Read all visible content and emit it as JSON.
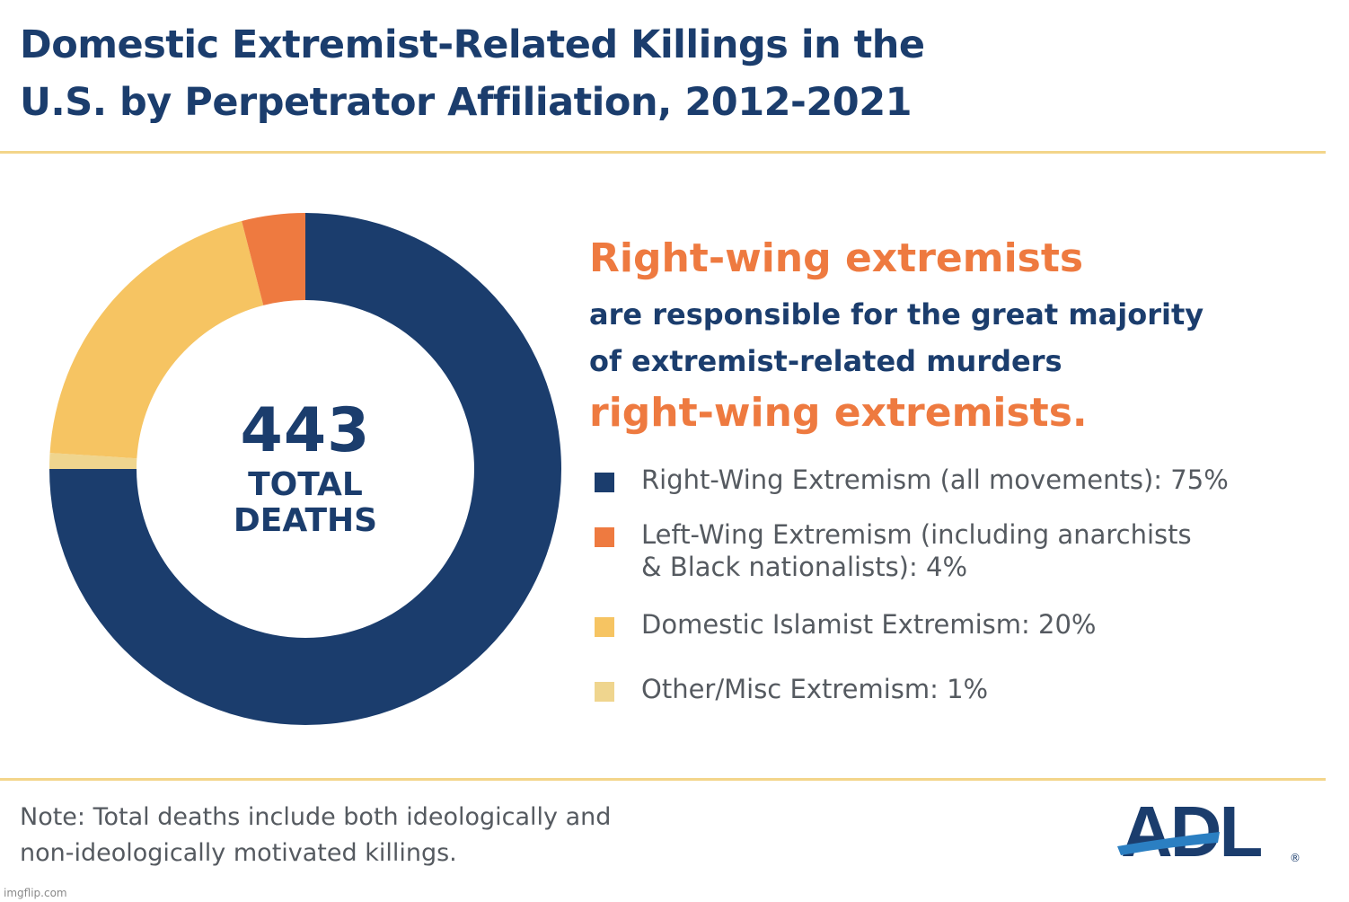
{
  "header": {
    "title_line1": "Domestic Extremist-Related Killings in the",
    "title_line2": "U.S. by Perpetrator Affiliation, 2012-2021"
  },
  "headline": {
    "line1": "Right-wing extremists",
    "line2": "are responsible for the great majority",
    "line3": "of extremist-related murders",
    "line4": "right-wing extremists."
  },
  "center": {
    "number": "443",
    "label_line1": "TOTAL",
    "label_line2": "DEATHS"
  },
  "legend": [
    {
      "line1": "Right-Wing Extremism (all movements):  75%",
      "line2": ""
    },
    {
      "line1": "Left-Wing Extremism (including anarchists",
      "line2": "& Black nationalists):  4%"
    },
    {
      "line1": "Domestic Islamist Extremism: 20%",
      "line2": ""
    },
    {
      "line1": "Other/Misc Extremism: 1%",
      "line2": ""
    }
  ],
  "note": {
    "line1": "Note: Total deaths include both ideologically and",
    "line2": "non-ideologically motivated killings."
  },
  "logo": {
    "text": "ADL",
    "reg": "®"
  },
  "watermark": "imgflip.com",
  "colors": {
    "navy": "#1b3d6d",
    "orange": "#ee7a40",
    "gold": "#f6c462",
    "tan": "#efd58e",
    "rule": "#f3d58a",
    "gray_text": "#555a60"
  },
  "chart_data": {
    "type": "pie",
    "title": "Domestic Extremist-Related Killings in the U.S. by Perpetrator Affiliation, 2012-2021",
    "total": 443,
    "center_label": "443 TOTAL DEATHS",
    "slices": [
      {
        "name": "Right-Wing Extremism (all movements)",
        "value": 75,
        "color": "#1b3d6d"
      },
      {
        "name": "Left-Wing Extremism (including anarchists & Black nationalists)",
        "value": 4,
        "color": "#ee7a40"
      },
      {
        "name": "Domestic Islamist Extremism",
        "value": 20,
        "color": "#f6c462"
      },
      {
        "name": "Other/Misc Extremism",
        "value": 1,
        "color": "#efd58e"
      }
    ],
    "drawn_order": [
      0,
      3,
      2,
      1
    ],
    "unit": "%"
  }
}
